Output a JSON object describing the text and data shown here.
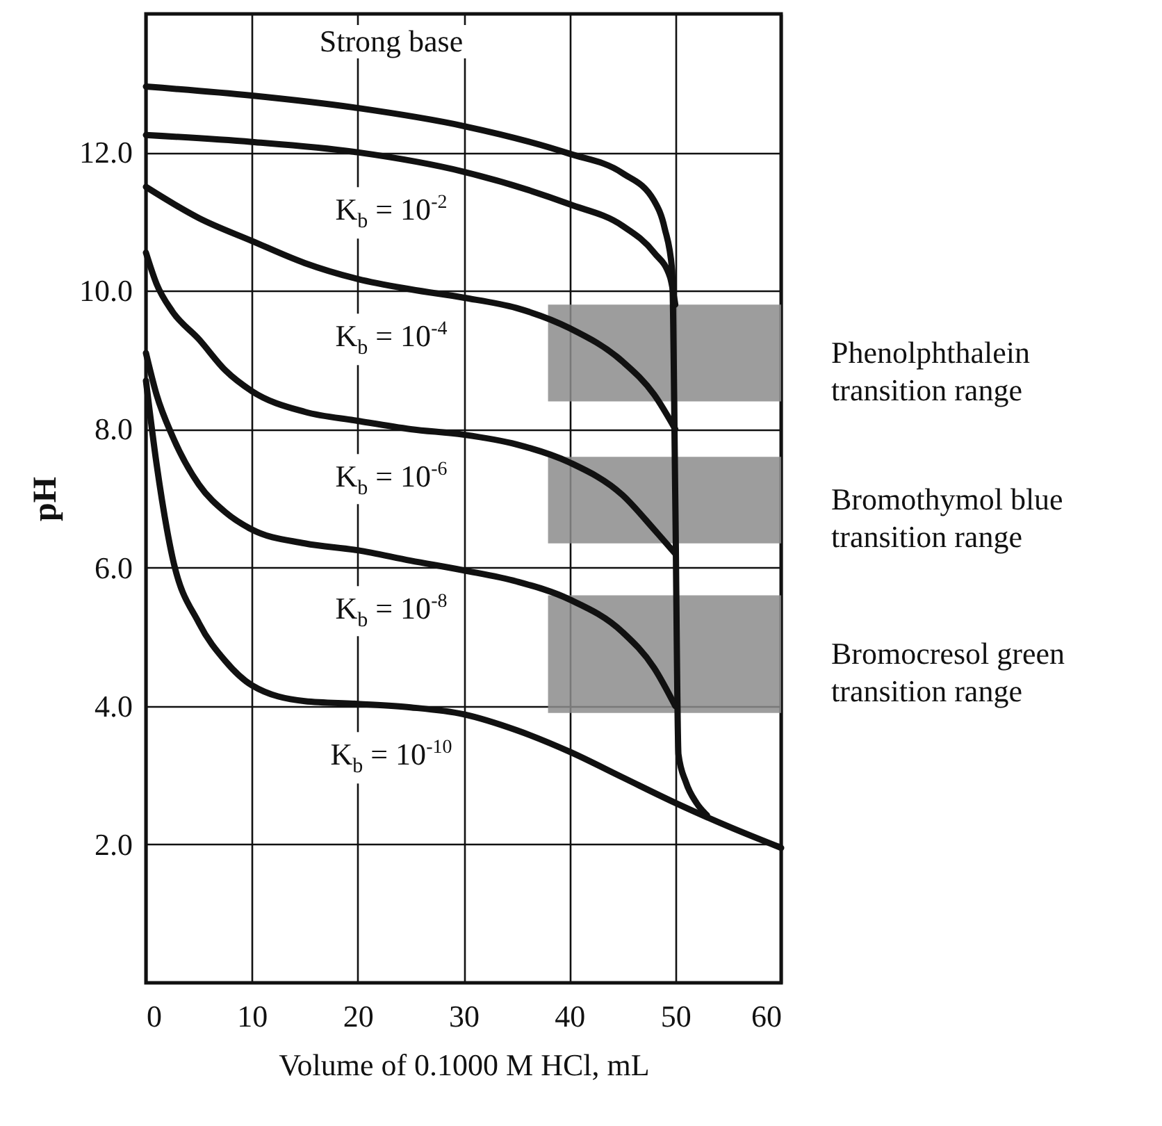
{
  "chart_data": {
    "type": "line",
    "xlabel": "Volume of 0.1000 M HCl, mL",
    "ylabel": "pH",
    "xlim": [
      0,
      60
    ],
    "xticks": [
      0,
      10,
      20,
      30,
      40,
      50,
      60
    ],
    "ylim": [
      0,
      14
    ],
    "yticks": [
      {
        "value": 2,
        "label": "2.0"
      },
      {
        "value": 4,
        "label": "4.0"
      },
      {
        "value": 6,
        "label": "6.0"
      },
      {
        "value": 8,
        "label": "8.0"
      },
      {
        "value": 10,
        "label": "10.0"
      },
      {
        "value": 12,
        "label": "12.0"
      }
    ],
    "grid": true,
    "legend": false,
    "line_style": "solid",
    "series": [
      {
        "name": "Strong base",
        "color": "#111111",
        "x": [
          0,
          10,
          20,
          30,
          40,
          45,
          48,
          49,
          49.7,
          50,
          50.3,
          51,
          52,
          53
        ],
        "values": [
          12.95,
          12.82,
          12.64,
          12.38,
          11.98,
          11.7,
          11.3,
          10.9,
          10.3,
          7.0,
          3.3,
          2.9,
          2.6,
          2.42
        ]
      },
      {
        "name": "K$_{b}$ = 10$^{-2}$",
        "color": "#111111",
        "x": [
          0,
          10,
          20,
          30,
          40,
          45,
          48,
          49.5,
          50
        ],
        "values": [
          12.25,
          12.15,
          12.0,
          11.72,
          11.25,
          10.94,
          10.55,
          10.2,
          9.8
        ]
      },
      {
        "name": "K$_{b}$ = 10$^{-4}$",
        "color": "#111111",
        "x": [
          0,
          5,
          10,
          15,
          20,
          25,
          30,
          35,
          40,
          45,
          48,
          50
        ],
        "values": [
          11.5,
          11.05,
          10.72,
          10.4,
          10.17,
          10.02,
          9.9,
          9.75,
          9.46,
          8.98,
          8.5,
          8.0
        ]
      },
      {
        "name": "K$_{b}$ = 10$^{-6}$",
        "color": "#111111",
        "x": [
          0,
          1,
          2.5,
          5,
          7.5,
          10,
          15,
          20,
          25,
          30,
          35,
          40,
          45,
          48,
          50
        ],
        "values": [
          10.55,
          10.1,
          9.7,
          9.3,
          8.85,
          8.55,
          8.25,
          8.12,
          8.0,
          7.92,
          7.78,
          7.52,
          7.05,
          6.55,
          6.2
        ]
      },
      {
        "name": "K$_{b}$ = 10$^{-8}$",
        "color": "#111111",
        "x": [
          0,
          1,
          2.5,
          5,
          7.5,
          10,
          15,
          20,
          25,
          30,
          35,
          40,
          45,
          48,
          50
        ],
        "values": [
          9.1,
          8.5,
          7.9,
          7.2,
          6.8,
          6.55,
          6.35,
          6.25,
          6.1,
          5.96,
          5.8,
          5.54,
          5.07,
          4.55,
          4.0
        ]
      },
      {
        "name": "K$_{b}$ = 10$^{-10}$",
        "color": "#111111",
        "x": [
          0,
          1,
          2.5,
          5,
          7.5,
          10,
          15,
          20,
          25,
          30,
          35,
          40,
          45,
          50,
          55,
          60
        ],
        "values": [
          8.7,
          7.5,
          6.15,
          5.2,
          4.65,
          4.3,
          4.07,
          4.03,
          3.98,
          3.88,
          3.65,
          3.34,
          2.97,
          2.6,
          2.26,
          1.95
        ]
      }
    ],
    "bands": [
      {
        "axis": "y",
        "from": 8.4,
        "to": 9.8,
        "label": "Phenolphthalein\ntransition range",
        "color": "#8c8c8c"
      },
      {
        "axis": "y",
        "from": 6.35,
        "to": 7.6,
        "label": "Bromothymol blue\ntransition range",
        "color": "#8c8c8c"
      },
      {
        "axis": "y",
        "from": 3.9,
        "to": 5.6,
        "label": "Bromocresol green\ntransition range",
        "color": "#8c8c8c"
      }
    ]
  }
}
